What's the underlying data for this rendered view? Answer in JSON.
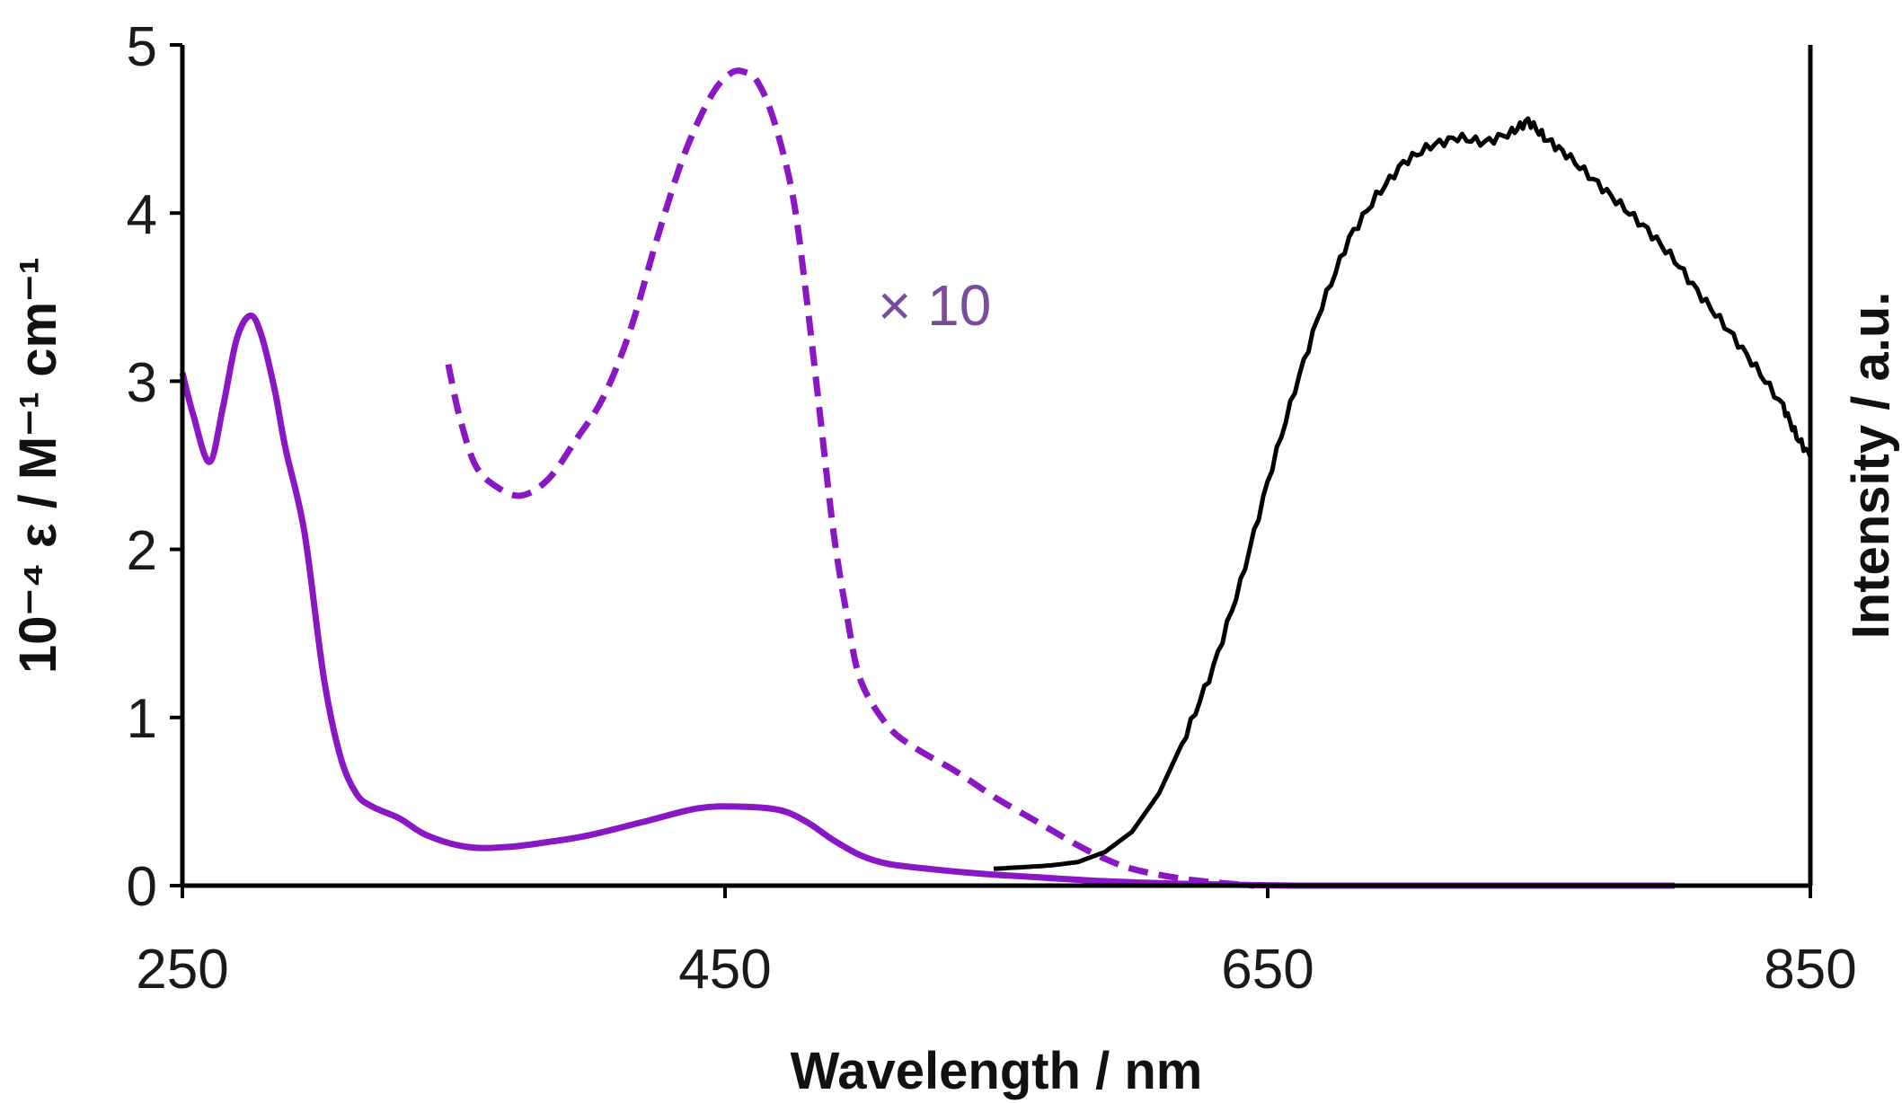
{
  "chart_data": {
    "type": "line",
    "title": "",
    "xlabel": "Wavelength / nm",
    "ylabel_left": "10⁻⁴ ε / M⁻¹ cm⁻¹",
    "ylabel_right": "Intensity / a.u.",
    "xlim": [
      250,
      850
    ],
    "ylim": [
      0,
      5
    ],
    "x_ticks": [
      "250",
      "450",
      "650",
      "850"
    ],
    "y_ticks": [
      "0",
      "1",
      "2",
      "3",
      "4",
      "5"
    ],
    "grid": false,
    "legend": "none",
    "annotations": [
      {
        "text": "× 10",
        "x": 515,
        "y": 3.45
      }
    ],
    "series": [
      {
        "role": "absorption",
        "style": "solid",
        "color": "#8a17c4",
        "x": [
          250,
          254,
          260,
          265,
          270,
          275,
          279,
          284,
          288,
          295,
          302,
          308,
          314,
          320,
          330,
          340,
          355,
          370,
          385,
          400,
          420,
          440,
          455,
          470,
          480,
          490,
          500,
          510,
          525,
          545,
          565,
          585,
          600,
          620,
          640,
          660,
          700,
          750,
          800
        ],
        "values": [
          3.05,
          2.8,
          2.52,
          2.85,
          3.25,
          3.39,
          3.28,
          2.95,
          2.6,
          2.1,
          1.25,
          0.78,
          0.55,
          0.47,
          0.4,
          0.3,
          0.23,
          0.23,
          0.26,
          0.3,
          0.38,
          0.46,
          0.47,
          0.45,
          0.38,
          0.27,
          0.18,
          0.13,
          0.1,
          0.07,
          0.05,
          0.03,
          0.02,
          0.01,
          0.005,
          0.0,
          0.0,
          0.0,
          0.0
        ]
      },
      {
        "role": "absorption × 10",
        "style": "dashed",
        "color": "#8a17c4",
        "x": [
          348,
          352,
          358,
          366,
          375,
          385,
          395,
          405,
          415,
          425,
          435,
          445,
          452,
          457,
          462,
          468,
          475,
          480,
          485,
          490,
          495,
          500,
          510,
          520,
          535,
          550,
          565,
          580,
          590,
          600,
          615,
          630,
          645
        ],
        "values": [
          3.1,
          2.8,
          2.5,
          2.37,
          2.32,
          2.42,
          2.65,
          2.9,
          3.3,
          3.85,
          4.35,
          4.7,
          4.83,
          4.84,
          4.78,
          4.55,
          4.1,
          3.5,
          2.8,
          2.1,
          1.6,
          1.22,
          0.95,
          0.82,
          0.68,
          0.52,
          0.38,
          0.24,
          0.16,
          0.1,
          0.05,
          0.02,
          0.0
        ]
      },
      {
        "role": "emission",
        "style": "solid",
        "color": "#000000",
        "x": [
          549,
          560,
          570,
          580,
          590,
          600,
          610,
          620,
          630,
          640,
          650,
          660,
          670,
          680,
          690,
          700,
          710,
          720,
          730,
          740,
          746,
          752,
          760,
          770,
          780,
          790,
          800,
          810,
          820,
          830,
          840,
          845,
          850
        ],
        "values": [
          0.1,
          0.11,
          0.12,
          0.14,
          0.2,
          0.32,
          0.55,
          0.9,
          1.3,
          1.8,
          2.4,
          2.95,
          3.45,
          3.85,
          4.1,
          4.3,
          4.4,
          4.45,
          4.42,
          4.48,
          4.55,
          4.45,
          4.35,
          4.2,
          4.05,
          3.9,
          3.72,
          3.5,
          3.3,
          3.08,
          2.85,
          2.67,
          2.55
        ]
      }
    ]
  }
}
